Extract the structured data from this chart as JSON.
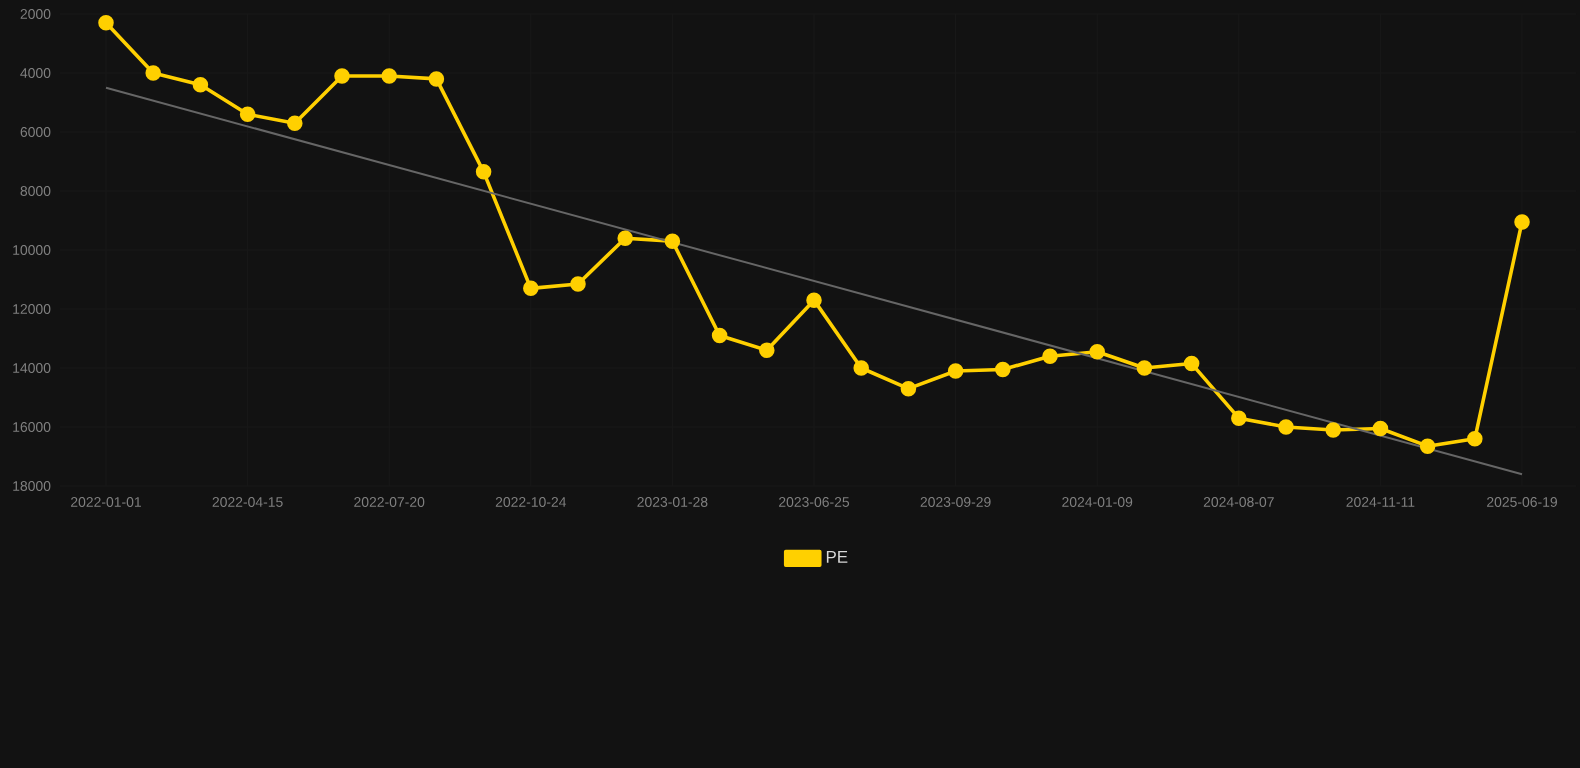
{
  "chart_data": {
    "type": "line",
    "categories": [
      "2022-01-01",
      null,
      null,
      "2022-04-15",
      null,
      null,
      "2022-07-20",
      null,
      null,
      "2022-10-24",
      null,
      null,
      "2023-01-28",
      null,
      null,
      "2023-06-25",
      null,
      null,
      "2023-09-29",
      null,
      null,
      "2024-01-09",
      null,
      null,
      "2024-08-07",
      null,
      null,
      "2024-11-11",
      null,
      null,
      "2025-06-19"
    ],
    "series": [
      {
        "name": "PE",
        "color": "#ffd000",
        "marker": "circle",
        "values": [
          2300,
          4000,
          4400,
          5400,
          5700,
          4100,
          4100,
          4200,
          7350,
          11300,
          11150,
          9600,
          9700,
          12900,
          13400,
          11700,
          14000,
          14700,
          14100,
          14050,
          13600,
          13450,
          14000,
          13850,
          15700,
          16000,
          16100,
          16050,
          16650,
          16400,
          9050
        ]
      },
      {
        "type": "line",
        "color": "#666666",
        "marker": "none",
        "values": [
          4500,
          null,
          null,
          null,
          null,
          null,
          null,
          null,
          null,
          null,
          null,
          null,
          null,
          null,
          null,
          null,
          null,
          null,
          null,
          null,
          null,
          null,
          null,
          null,
          null,
          null,
          null,
          null,
          null,
          null,
          17600
        ]
      }
    ],
    "ylim": [
      18000,
      2000
    ],
    "yticks": [
      2000,
      4000,
      6000,
      8000,
      10000,
      12000,
      14000,
      16000,
      18000
    ],
    "grid": true,
    "legend": "bottom"
  }
}
